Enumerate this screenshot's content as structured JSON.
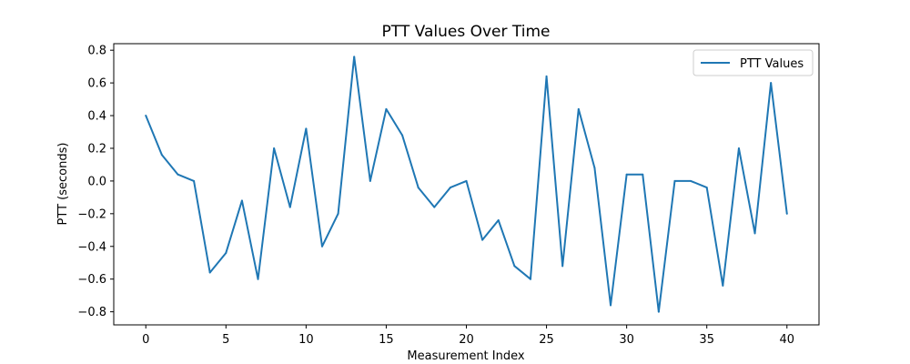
{
  "chart_data": {
    "type": "line",
    "title": "PTT Values Over Time",
    "xlabel": "Measurement Index",
    "ylabel": "PTT (seconds)",
    "xlim": [
      -2,
      42
    ],
    "ylim": [
      -0.88,
      0.84
    ],
    "xticks": [
      0,
      5,
      10,
      15,
      20,
      25,
      30,
      35,
      40
    ],
    "yticks": [
      -0.8,
      -0.6,
      -0.4,
      -0.2,
      0.0,
      0.2,
      0.4,
      0.6,
      0.8
    ],
    "ytick_labels": [
      "−0.8",
      "−0.6",
      "−0.4",
      "−0.2",
      "0.0",
      "0.2",
      "0.4",
      "0.6",
      "0.8"
    ],
    "legend_position": "upper right",
    "grid": false,
    "series": [
      {
        "name": "PTT Values",
        "color": "#1f77b4",
        "x": [
          0,
          1,
          2,
          3,
          4,
          5,
          6,
          7,
          8,
          9,
          10,
          11,
          12,
          13,
          14,
          15,
          16,
          17,
          18,
          19,
          20,
          21,
          22,
          23,
          24,
          25,
          26,
          27,
          28,
          29,
          30,
          31,
          32,
          33,
          34,
          35,
          36,
          37,
          38,
          39,
          40
        ],
        "values": [
          0.4,
          0.16,
          0.04,
          0.0,
          -0.56,
          -0.44,
          -0.12,
          -0.6,
          0.2,
          -0.16,
          0.32,
          -0.4,
          -0.2,
          0.76,
          0.0,
          0.44,
          0.28,
          -0.04,
          -0.16,
          -0.04,
          0.0,
          -0.36,
          -0.24,
          -0.52,
          -0.6,
          0.64,
          -0.52,
          0.44,
          0.08,
          -0.76,
          0.04,
          0.04,
          -0.8,
          0.0,
          0.0,
          -0.04,
          -0.64,
          0.2,
          -0.32,
          0.6,
          -0.2
        ]
      }
    ]
  }
}
